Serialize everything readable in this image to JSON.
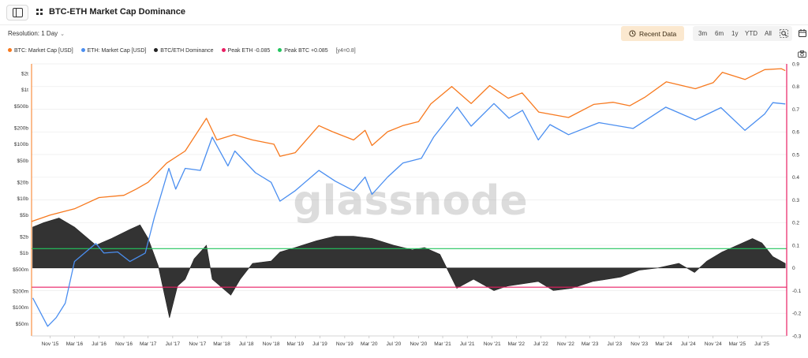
{
  "header": {
    "title": "BTC-ETH Market Cap Dominance"
  },
  "controls": {
    "resolution_label": "Resolution: 1 Day",
    "recent_data_label": "Recent Data",
    "ranges": [
      "3m",
      "6m",
      "1y",
      "YTD",
      "All"
    ]
  },
  "legend": {
    "items": [
      {
        "label": "BTC: Market Cap [USD]",
        "color": "#f7791e"
      },
      {
        "label": "ETH: Market Cap [USD]",
        "color": "#4a8ef0"
      },
      {
        "label": "BTC/ETH Dominance",
        "color": "#222222"
      },
      {
        "label": "Peak ETH -0.085",
        "color": "#e91e63"
      },
      {
        "label": "Peak BTC +0.085",
        "color": "#22c55e"
      }
    ],
    "note": "[y4=0.8]"
  },
  "watermark": "glassnode",
  "icons": {
    "sidebar": "sidebar-toggle-icon",
    "layout": "grid-icon",
    "recent": "history-icon",
    "zoom": "zoom-icon",
    "calendar": "calendar-icon",
    "screenshot": "camera-icon"
  },
  "chart_data": {
    "type": "line",
    "title": "BTC-ETH Market Cap Dominance",
    "left_axis": {
      "scale": "log",
      "range": [
        30000000,
        3000000000000
      ],
      "ticks": [
        {
          "label": "$2t",
          "value": 2000000000000
        },
        {
          "label": "$1t",
          "value": 1000000000000
        },
        {
          "label": "$500b",
          "value": 500000000000
        },
        {
          "label": "$200b",
          "value": 200000000000
        },
        {
          "label": "$100b",
          "value": 100000000000
        },
        {
          "label": "$50b",
          "value": 50000000000
        },
        {
          "label": "$20b",
          "value": 20000000000
        },
        {
          "label": "$10b",
          "value": 10000000000
        },
        {
          "label": "$5b",
          "value": 5000000000
        },
        {
          "label": "$2b",
          "value": 2000000000
        },
        {
          "label": "$1b",
          "value": 1000000000
        },
        {
          "label": "$500m",
          "value": 500000000
        },
        {
          "label": "$200m",
          "value": 200000000
        },
        {
          "label": "$100m",
          "value": 100000000
        },
        {
          "label": "$50m",
          "value": 50000000
        }
      ]
    },
    "right_axis": {
      "scale": "linear",
      "range": [
        -0.3,
        0.9
      ],
      "ticks": [
        0.9,
        0.8,
        0.7,
        0.6,
        0.5,
        0.4,
        0.3,
        0.2,
        0.1,
        0,
        -0.1,
        -0.2,
        -0.3
      ]
    },
    "x_axis": {
      "range": [
        "2015-08-01",
        "2025-11-01"
      ],
      "ticks": [
        {
          "label": "Nov '15",
          "date": "2015-11-01"
        },
        {
          "label": "Mar '16",
          "date": "2016-03-01"
        },
        {
          "label": "Jul '16",
          "date": "2016-07-01"
        },
        {
          "label": "Nov '16",
          "date": "2016-11-01"
        },
        {
          "label": "Mar '17",
          "date": "2017-03-01"
        },
        {
          "label": "Jul '17",
          "date": "2017-07-01"
        },
        {
          "label": "Nov '17",
          "date": "2017-11-01"
        },
        {
          "label": "Mar '18",
          "date": "2018-03-01"
        },
        {
          "label": "Jul '18",
          "date": "2018-07-01"
        },
        {
          "label": "Nov '18",
          "date": "2018-11-01"
        },
        {
          "label": "Mar '19",
          "date": "2019-03-01"
        },
        {
          "label": "Jul '19",
          "date": "2019-07-01"
        },
        {
          "label": "Nov '19",
          "date": "2019-11-01"
        },
        {
          "label": "Mar '20",
          "date": "2020-03-01"
        },
        {
          "label": "Jul '20",
          "date": "2020-07-01"
        },
        {
          "label": "Nov '20",
          "date": "2020-11-01"
        },
        {
          "label": "Mar '21",
          "date": "2021-03-01"
        },
        {
          "label": "Jul '21",
          "date": "2021-07-01"
        },
        {
          "label": "Nov '21",
          "date": "2021-11-01"
        },
        {
          "label": "Mar '22",
          "date": "2022-03-01"
        },
        {
          "label": "Jul '22",
          "date": "2022-07-01"
        },
        {
          "label": "Nov '22",
          "date": "2022-11-01"
        },
        {
          "label": "Mar '23",
          "date": "2023-03-01"
        },
        {
          "label": "Jul '23",
          "date": "2023-07-01"
        },
        {
          "label": "Nov '23",
          "date": "2023-11-01"
        },
        {
          "label": "Mar '24",
          "date": "2024-03-01"
        },
        {
          "label": "Jul '24",
          "date": "2024-07-01"
        },
        {
          "label": "Nov '24",
          "date": "2024-11-01"
        },
        {
          "label": "Mar '25",
          "date": "2025-03-01"
        },
        {
          "label": "Jul '25",
          "date": "2025-07-01"
        }
      ]
    },
    "series": [
      {
        "name": "BTC: Market Cap [USD]",
        "axis": "left",
        "color": "#f7791e",
        "points": [
          [
            "2015-08-01",
            3800000000
          ],
          [
            "2015-11-01",
            5000000000
          ],
          [
            "2016-03-01",
            6500000000
          ],
          [
            "2016-07-01",
            10500000000
          ],
          [
            "2016-11-01",
            11500000000
          ],
          [
            "2017-01-01",
            15000000000
          ],
          [
            "2017-03-01",
            20000000000
          ],
          [
            "2017-06-01",
            45000000000
          ],
          [
            "2017-09-01",
            75000000000
          ],
          [
            "2017-12-15",
            300000000000
          ],
          [
            "2018-02-05",
            120000000000
          ],
          [
            "2018-05-01",
            150000000000
          ],
          [
            "2018-08-01",
            120000000000
          ],
          [
            "2018-11-15",
            100000000000
          ],
          [
            "2018-12-15",
            60000000000
          ],
          [
            "2019-03-01",
            70000000000
          ],
          [
            "2019-06-26",
            220000000000
          ],
          [
            "2019-09-01",
            170000000000
          ],
          [
            "2019-12-15",
            120000000000
          ],
          [
            "2020-02-10",
            180000000000
          ],
          [
            "2020-03-15",
            95000000000
          ],
          [
            "2020-06-01",
            170000000000
          ],
          [
            "2020-08-15",
            220000000000
          ],
          [
            "2020-11-01",
            260000000000
          ],
          [
            "2021-01-01",
            550000000000
          ],
          [
            "2021-04-15",
            1150000000000
          ],
          [
            "2021-07-20",
            560000000000
          ],
          [
            "2021-10-20",
            1200000000000
          ],
          [
            "2022-01-20",
            700000000000
          ],
          [
            "2022-03-30",
            880000000000
          ],
          [
            "2022-06-20",
            390000000000
          ],
          [
            "2022-11-15",
            310000000000
          ],
          [
            "2023-03-20",
            540000000000
          ],
          [
            "2023-06-25",
            590000000000
          ],
          [
            "2023-09-15",
            510000000000
          ],
          [
            "2023-12-01",
            740000000000
          ],
          [
            "2024-03-14",
            1400000000000
          ],
          [
            "2024-08-05",
            1050000000000
          ],
          [
            "2024-11-01",
            1350000000000
          ],
          [
            "2024-12-17",
            2100000000000
          ],
          [
            "2025-04-08",
            1550000000000
          ],
          [
            "2025-07-15",
            2350000000000
          ],
          [
            "2025-10-05",
            2450000000000
          ],
          [
            "2025-10-25",
            2250000000000
          ]
        ]
      },
      {
        "name": "ETH: Market Cap [USD]",
        "axis": "left",
        "color": "#4a8ef0",
        "points": [
          [
            "2015-08-07",
            150000000
          ],
          [
            "2015-09-01",
            100000000
          ],
          [
            "2015-10-20",
            45000000
          ],
          [
            "2015-12-01",
            65000000
          ],
          [
            "2016-01-15",
            120000000
          ],
          [
            "2016-03-01",
            700000000
          ],
          [
            "2016-06-15",
            1500000000
          ],
          [
            "2016-07-25",
            1000000000
          ],
          [
            "2016-10-01",
            1050000000
          ],
          [
            "2016-12-01",
            700000000
          ],
          [
            "2017-02-15",
            1000000000
          ],
          [
            "2017-04-01",
            4500000000
          ],
          [
            "2017-06-12",
            36000000000
          ],
          [
            "2017-07-16",
            15000000000
          ],
          [
            "2017-09-01",
            36000000000
          ],
          [
            "2017-11-15",
            33000000000
          ],
          [
            "2018-01-13",
            135000000000
          ],
          [
            "2018-04-01",
            40000000000
          ],
          [
            "2018-05-05",
            75000000000
          ],
          [
            "2018-08-15",
            30000000000
          ],
          [
            "2018-11-01",
            20000000000
          ],
          [
            "2018-12-15",
            9000000000
          ],
          [
            "2019-03-01",
            14000000000
          ],
          [
            "2019-06-26",
            33000000000
          ],
          [
            "2019-09-15",
            21000000000
          ],
          [
            "2019-12-15",
            14000000000
          ],
          [
            "2020-02-10",
            25000000000
          ],
          [
            "2020-03-15",
            12000000000
          ],
          [
            "2020-06-01",
            25000000000
          ],
          [
            "2020-08-15",
            45000000000
          ],
          [
            "2020-11-15",
            55000000000
          ],
          [
            "2021-01-15",
            135000000000
          ],
          [
            "2021-05-12",
            480000000000
          ],
          [
            "2021-07-20",
            215000000000
          ],
          [
            "2021-11-10",
            560000000000
          ],
          [
            "2022-01-24",
            300000000000
          ],
          [
            "2022-04-01",
            420000000000
          ],
          [
            "2022-06-18",
            120000000000
          ],
          [
            "2022-08-15",
            230000000000
          ],
          [
            "2022-11-15",
            150000000000
          ],
          [
            "2023-04-15",
            250000000000
          ],
          [
            "2023-10-01",
            195000000000
          ],
          [
            "2024-03-11",
            480000000000
          ],
          [
            "2024-08-05",
            280000000000
          ],
          [
            "2024-12-10",
            470000000000
          ],
          [
            "2025-04-08",
            180000000000
          ],
          [
            "2025-07-15",
            360000000000
          ],
          [
            "2025-08-24",
            580000000000
          ],
          [
            "2025-10-25",
            550000000000
          ]
        ]
      },
      {
        "name": "BTC/ETH Dominance",
        "axis": "right",
        "type": "area",
        "color": "#222222",
        "points": [
          [
            "2015-08-07",
            0.18
          ],
          [
            "2015-10-01",
            0.2
          ],
          [
            "2015-12-15",
            0.22
          ],
          [
            "2016-03-01",
            0.18
          ],
          [
            "2016-06-15",
            0.1
          ],
          [
            "2016-09-01",
            0.13
          ],
          [
            "2016-12-01",
            0.17
          ],
          [
            "2017-01-20",
            0.19
          ],
          [
            "2017-03-01",
            0.13
          ],
          [
            "2017-04-20",
            0.01
          ],
          [
            "2017-06-15",
            -0.22
          ],
          [
            "2017-07-25",
            -0.08
          ],
          [
            "2017-09-01",
            -0.05
          ],
          [
            "2017-10-15",
            0.04
          ],
          [
            "2017-12-15",
            0.1
          ],
          [
            "2018-01-13",
            -0.05
          ],
          [
            "2018-04-15",
            -0.12
          ],
          [
            "2018-06-01",
            -0.05
          ],
          [
            "2018-08-01",
            0.02
          ],
          [
            "2018-11-01",
            0.03
          ],
          [
            "2018-12-15",
            0.07
          ],
          [
            "2019-03-01",
            0.09
          ],
          [
            "2019-06-15",
            0.12
          ],
          [
            "2019-09-15",
            0.14
          ],
          [
            "2019-12-15",
            0.14
          ],
          [
            "2020-03-15",
            0.13
          ],
          [
            "2020-07-01",
            0.1
          ],
          [
            "2020-10-01",
            0.08
          ],
          [
            "2020-12-01",
            0.09
          ],
          [
            "2021-02-15",
            0.06
          ],
          [
            "2021-05-10",
            -0.09
          ],
          [
            "2021-08-01",
            -0.05
          ],
          [
            "2021-11-10",
            -0.1
          ],
          [
            "2022-01-15",
            -0.08
          ],
          [
            "2022-04-01",
            -0.07
          ],
          [
            "2022-06-18",
            -0.06
          ],
          [
            "2022-09-01",
            -0.1
          ],
          [
            "2022-12-01",
            -0.09
          ],
          [
            "2023-03-15",
            -0.06
          ],
          [
            "2023-08-01",
            -0.04
          ],
          [
            "2023-11-01",
            -0.01
          ],
          [
            "2024-02-01",
            0.0
          ],
          [
            "2024-05-15",
            0.02
          ],
          [
            "2024-08-01",
            -0.02
          ],
          [
            "2024-10-01",
            0.03
          ],
          [
            "2024-12-15",
            0.07
          ],
          [
            "2025-03-01",
            0.1
          ],
          [
            "2025-05-15",
            0.13
          ],
          [
            "2025-07-01",
            0.11
          ],
          [
            "2025-08-24",
            0.05
          ],
          [
            "2025-10-25",
            0.02
          ]
        ]
      }
    ],
    "reference_lines": [
      {
        "name": "Peak BTC +0.085",
        "value": 0.085,
        "axis": "right",
        "color": "#22c55e"
      },
      {
        "name": "Peak ETH -0.085",
        "value": -0.085,
        "axis": "right",
        "color": "#e91e63"
      }
    ],
    "grid": true,
    "legend_placement": "top-left"
  }
}
